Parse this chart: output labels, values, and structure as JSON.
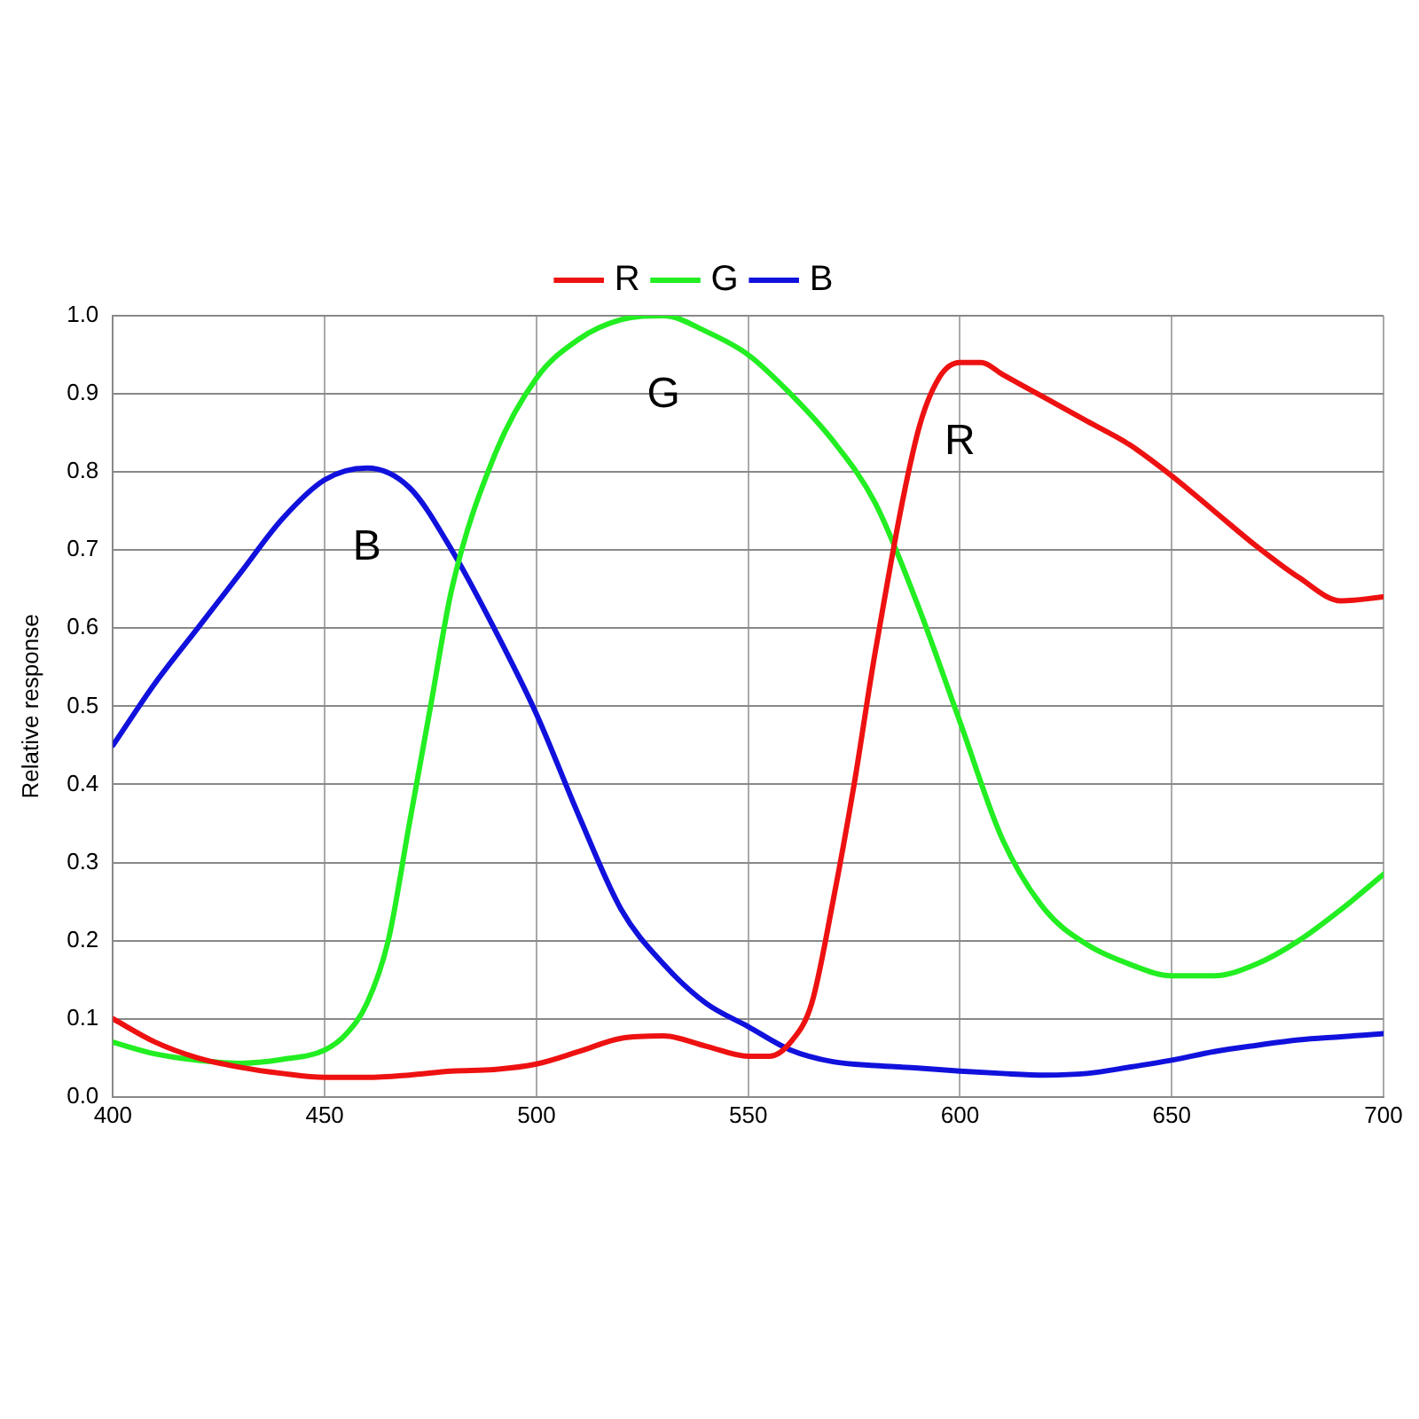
{
  "chart_data": {
    "type": "line",
    "ylabel": "Relative response",
    "xlim": [
      400,
      700
    ],
    "xticks": [
      400,
      450,
      500,
      550,
      600,
      650,
      700
    ],
    "ylim": [
      0,
      1
    ],
    "yticks": [
      {
        "value": 0,
        "label": "0.0"
      },
      0.1,
      0.2,
      0.3,
      0.4,
      0.5,
      0.6,
      0.7,
      0.8,
      0.9,
      {
        "value": 1,
        "label": "1.0"
      }
    ],
    "grid": true,
    "legend": "top",
    "marker": "none",
    "line_style": "solid",
    "series": [
      {
        "name": "R",
        "color": "#ee1111",
        "x": [
          400,
          410,
          420,
          430,
          440,
          450,
          460,
          470,
          480,
          490,
          500,
          510,
          520,
          530,
          540,
          550,
          555,
          560,
          565,
          570,
          575,
          580,
          590,
          595,
          600,
          605,
          610,
          620,
          630,
          640,
          650,
          660,
          670,
          680,
          690,
          700
        ],
        "values": [
          0.1,
          0.07,
          0.05,
          0.038,
          0.03,
          0.025,
          0.025,
          0.028,
          0.033,
          0.035,
          0.042,
          0.058,
          0.075,
          0.078,
          0.065,
          0.052,
          0.052,
          0.07,
          0.12,
          0.25,
          0.4,
          0.57,
          0.85,
          0.92,
          0.94,
          0.94,
          0.925,
          0.895,
          0.865,
          0.835,
          0.795,
          0.75,
          0.705,
          0.665,
          0.635,
          0.64
        ]
      },
      {
        "name": "G",
        "color": "#22ee22",
        "x": [
          400,
          410,
          420,
          430,
          440,
          450,
          455,
          460,
          465,
          470,
          475,
          480,
          490,
          500,
          510,
          520,
          530,
          540,
          550,
          560,
          570,
          580,
          590,
          600,
          610,
          620,
          630,
          640,
          650,
          660,
          670,
          680,
          690,
          700
        ],
        "values": [
          0.07,
          0.055,
          0.047,
          0.043,
          0.048,
          0.06,
          0.08,
          0.12,
          0.2,
          0.35,
          0.5,
          0.65,
          0.82,
          0.92,
          0.97,
          0.995,
          1.0,
          0.98,
          0.95,
          0.9,
          0.84,
          0.76,
          0.63,
          0.48,
          0.33,
          0.24,
          0.195,
          0.17,
          0.155,
          0.155,
          0.17,
          0.2,
          0.24,
          0.285
        ]
      },
      {
        "name": "B",
        "color": "#1111dd",
        "x": [
          400,
          410,
          420,
          430,
          440,
          450,
          460,
          470,
          480,
          490,
          500,
          510,
          520,
          530,
          540,
          550,
          560,
          570,
          580,
          590,
          600,
          610,
          620,
          630,
          640,
          650,
          660,
          670,
          680,
          690,
          700
        ],
        "values": [
          0.45,
          0.53,
          0.6,
          0.67,
          0.74,
          0.79,
          0.805,
          0.78,
          0.7,
          0.6,
          0.49,
          0.36,
          0.24,
          0.17,
          0.12,
          0.09,
          0.06,
          0.045,
          0.04,
          0.037,
          0.033,
          0.03,
          0.028,
          0.03,
          0.038,
          0.047,
          0.058,
          0.066,
          0.073,
          0.077,
          0.081
        ]
      }
    ]
  }
}
